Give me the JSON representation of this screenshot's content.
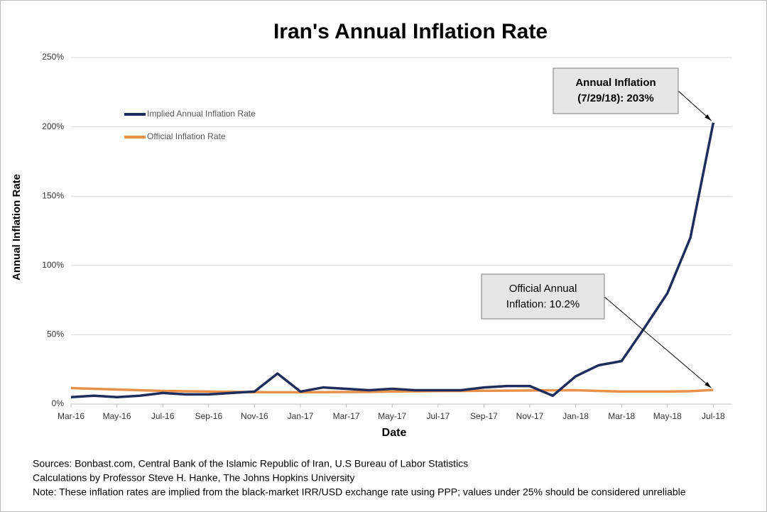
{
  "chart_data": {
    "type": "line",
    "title": "Iran's Annual Inflation Rate",
    "x_label": "Date",
    "y_label": "Annual Inflation Rate",
    "x": [
      "Mar-16",
      "Apr-16",
      "May-16",
      "Jun-16",
      "Jul-16",
      "Aug-16",
      "Sep-16",
      "Oct-16",
      "Nov-16",
      "Dec-16",
      "Jan-17",
      "Feb-17",
      "Mar-17",
      "Apr-17",
      "May-17",
      "Jun-17",
      "Jul-17",
      "Aug-17",
      "Sep-17",
      "Oct-17",
      "Nov-17",
      "Dec-17",
      "Jan-18",
      "Feb-18",
      "Mar-18",
      "Apr-18",
      "May-18",
      "Jun-18",
      "Jul-18"
    ],
    "xticks": [
      "Mar-16",
      "May-16",
      "Jul-16",
      "Sep-16",
      "Nov-16",
      "Jan-17",
      "Mar-17",
      "May-17",
      "Jul-17",
      "Sep-17",
      "Nov-17",
      "Jan-18",
      "Mar-18",
      "May-18",
      "Jul-18"
    ],
    "series": [
      {
        "name": "Implied Annual Inflation Rate",
        "color": "#1f2d5c",
        "values": [
          5,
          6,
          5,
          6,
          8,
          7,
          7,
          8,
          9,
          22,
          9,
          12,
          11,
          10,
          11,
          10,
          10,
          10,
          12,
          13,
          13,
          6,
          20,
          28,
          31,
          55,
          80,
          120,
          203
        ]
      },
      {
        "name": "Official Inflation Rate",
        "color": "#e8914a",
        "values": [
          11.5,
          11,
          10.5,
          10,
          9.5,
          9.2,
          9,
          8.8,
          8.6,
          8.5,
          8.5,
          8.6,
          8.7,
          8.8,
          9,
          9.2,
          9.4,
          9.5,
          9.6,
          9.7,
          9.8,
          9.9,
          10,
          9.5,
          9,
          9,
          9,
          9.3,
          10.2
        ]
      }
    ],
    "ylim": [
      0,
      250
    ],
    "yticks": [
      {
        "value": 0,
        "label": "0%"
      },
      {
        "value": 50,
        "label": "50%"
      },
      {
        "value": 100,
        "label": "100%"
      },
      {
        "value": 150,
        "label": "150%"
      },
      {
        "value": 200,
        "label": "200%"
      },
      {
        "value": 250,
        "label": "250%"
      }
    ],
    "grid": true,
    "legend": "upper left",
    "annotations": [
      {
        "lines": [
          "Annual Inflation",
          "(7/29/18): 203%"
        ]
      },
      {
        "lines": [
          "Official Annual",
          "Inflation: 10.2%"
        ]
      }
    ],
    "notes": [
      "Sources: Bonbast.com, Central Bank of the Islamic Republic of Iran, U.S Bureau of Labor Statistics",
      "Calculations by Professor Steve H. Hanke, The Johns Hopkins University",
      "Note: These inflation rates are implied from the black-market IRR/USD exchange rate using PPP; values under 25% should be considered unreliable"
    ]
  }
}
